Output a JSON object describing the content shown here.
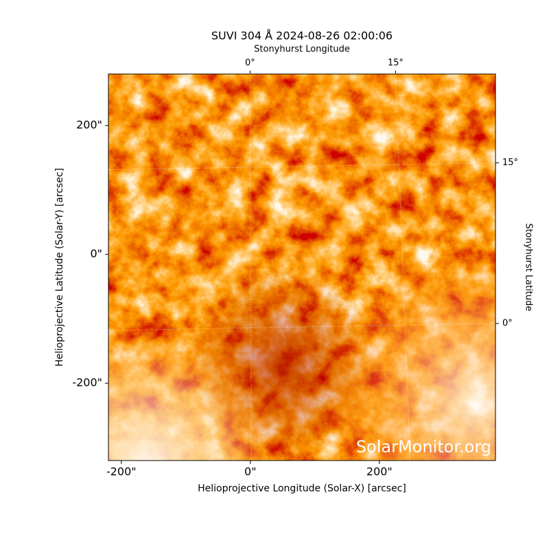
{
  "chart_data": {
    "type": "image",
    "title": "SUVI 304 Å 2024-08-26 02:00:06",
    "xlabel": "Helioprojective Longitude (Solar-X) [arcsec]",
    "ylabel": "Helioprojective Latitude (Solar-Y) [arcsec]",
    "x2label": "Stonyhurst Longitude",
    "y2label": "Stonyhurst Latitude",
    "xlim": [
      -220,
      380
    ],
    "ylim": [
      -320,
      280
    ],
    "xticks": [
      {
        "value": -200,
        "label": "-200\""
      },
      {
        "value": 0,
        "label": "0\""
      },
      {
        "value": 200,
        "label": "200\""
      }
    ],
    "yticks": [
      {
        "value": -200,
        "label": "-200\""
      },
      {
        "value": 0,
        "label": "0\""
      },
      {
        "value": 200,
        "label": "200\""
      }
    ],
    "x2lim": [
      -14.6,
      25.3
    ],
    "x2ticks": [
      {
        "value": 0,
        "label": "0°"
      },
      {
        "value": 15,
        "label": "15°"
      }
    ],
    "y2lim": [
      -12.8,
      23.3
    ],
    "y2ticks": [
      {
        "value": 0,
        "label": "0°"
      },
      {
        "value": 15,
        "label": "15°"
      }
    ],
    "grid": true,
    "watermark": "SolarMonitor.org"
  }
}
